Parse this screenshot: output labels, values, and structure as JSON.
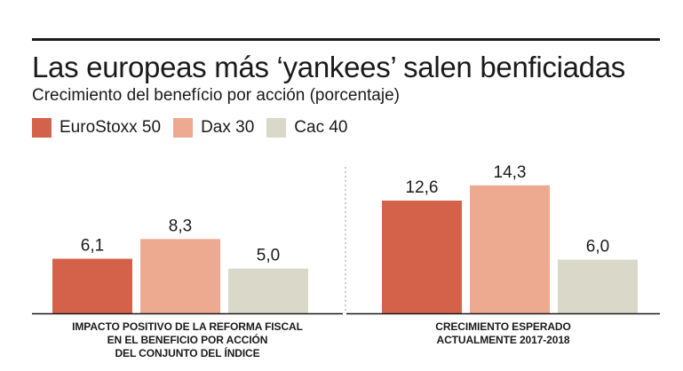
{
  "title": "Las europeas más ‘yankees’ salen benficiadas",
  "subtitle": "Crecimiento del benefício por acción (porcentaje)",
  "colors": {
    "eurostoxx": "#d4624a",
    "dax": "#eeaa90",
    "cac": "#dad8c8"
  },
  "chart_data": {
    "type": "bar",
    "title": "Las europeas más ‘yankees’ salen benficiadas",
    "subtitle": "Crecimiento del benefício por acción (porcentaje)",
    "xlabel": "",
    "ylabel": "",
    "ylim": [
      0,
      16
    ],
    "grid": false,
    "legend_position": "top-left",
    "categories": [
      [
        "IMPACTO POSITIVO DE LA REFORMA FISCAL",
        "EN EL BENEFICIO POR ACCIÓN",
        "DEL CONJUNTO DEL ÍNDICE"
      ],
      [
        "CRECIMIENTO ESPERADO",
        "ACTUALMENTE 2017-2018"
      ]
    ],
    "series": [
      {
        "name": "EuroStoxx 50",
        "color": "#d4624a",
        "values": [
          6.1,
          12.6
        ],
        "labels": [
          "6,1",
          "12,6"
        ]
      },
      {
        "name": "Dax 30",
        "color": "#eeaa90",
        "values": [
          8.3,
          14.3
        ],
        "labels": [
          "8,3",
          "14,3"
        ]
      },
      {
        "name": "Cac 40",
        "color": "#dad8c8",
        "values": [
          5.0,
          6.0
        ],
        "labels": [
          "5,0",
          "6,0"
        ]
      }
    ]
  }
}
